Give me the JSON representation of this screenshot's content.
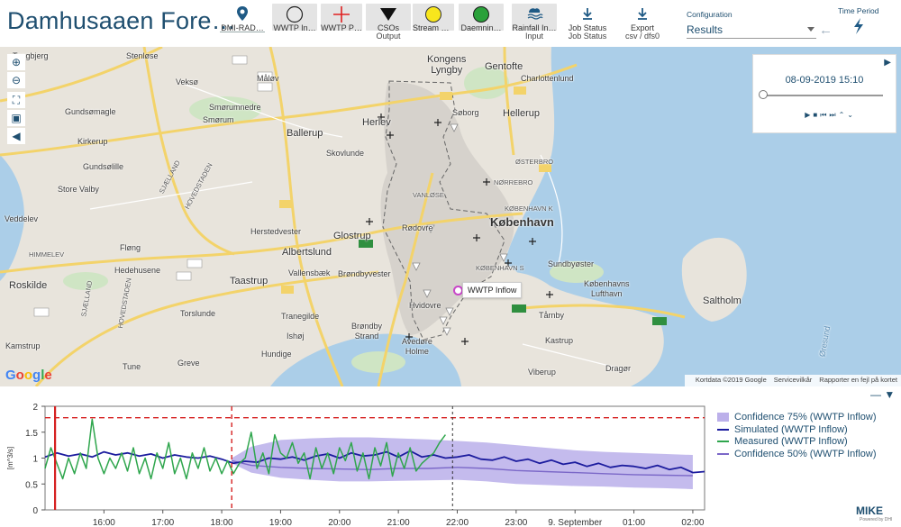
{
  "app": {
    "title": "Damhusaaen Fore…"
  },
  "toolbar": {
    "buttons": [
      {
        "label": "DMI-RAD…",
        "sub": ""
      },
      {
        "label": "WWTP In…",
        "sub": ""
      },
      {
        "label": "WWTP P…",
        "sub": ""
      },
      {
        "label": "CSOs",
        "sub": "Output"
      },
      {
        "label": "Stream O…",
        "sub": ""
      },
      {
        "label": "Daemnin…",
        "sub": ""
      },
      {
        "label": "Rainfall In…",
        "sub": "Input"
      },
      {
        "label": "Job Status",
        "sub": "Job Status"
      },
      {
        "label": "Export",
        "sub": "csv / dfs0"
      }
    ],
    "configuration_label": "Configuration",
    "configuration_value": "Results",
    "time_period_label": "Time Period"
  },
  "colors": {
    "title": "#1f4f70",
    "water": "#abcee8",
    "land": "#e8e4dc",
    "road": "#f3d36a",
    "confidence75": "#a596e3",
    "simulated": "#1c1c9e",
    "measured": "#2fa64d",
    "confidence50": "#7b68c8",
    "reference_line": "#d62020",
    "wwtp_marker": "#c846c8"
  },
  "map": {
    "places": {
      "tangbjerg": "Tangbjerg",
      "stenlose": "Stenløse",
      "veksoe": "Veksø",
      "malov": "Måløv",
      "smorumnedre": "Smørumnedre",
      "smorum": "Smørum",
      "gundsomagle": "Gundsømagle",
      "kirkerup": "Kirkerup",
      "gundsolille": "Gundsølille",
      "store_valby": "Store Valby",
      "sjaelland": "SJÆLLAND",
      "hovedstaden": "HOVEDSTADEN",
      "veddelev": "Veddelev",
      "himmelev": "HIMMELEV",
      "floeng": "Fløng",
      "hedehusene": "Hedehusene",
      "roskilde": "Roskilde",
      "sjaelland2": "SJÆLLAND",
      "hovedstaden2": "HOVEDSTADEN",
      "torslunde": "Torslunde",
      "kamstrup": "Kamstrup",
      "tune": "Tune",
      "greve": "Greve",
      "hundige": "Hundige",
      "ishoj": "Ishøj",
      "tranegilde": "Tranegilde",
      "taastrup": "Taastrup",
      "vallensbaek": "Vallensbæk",
      "brondbyvester": "Brøndbyvester",
      "albertslund": "Albertslund",
      "glostrup": "Glostrup",
      "herstedvester": "Herstedvester",
      "ballerup": "Ballerup",
      "skovlunde": "Skovlunde",
      "herlev": "Herlev",
      "kongens_lyngby": "Kongens\nLyngby",
      "gentofte": "Gentofte",
      "charlottenlund": "Charlottenlund",
      "soborg": "Søborg",
      "hellerup": "Hellerup",
      "osterbro": "ØSTERBRO",
      "norrebro": "NØRREBRO",
      "kobenhavn_k": "KØBENHAVN K",
      "kobenhavn": "København",
      "sundbyoster": "Sundbyøster",
      "kobenhavns_lufthavn": "Københavns\nLufthavn",
      "saltholm": "Saltholm",
      "tarnby": "Tårnby",
      "kastrup": "Kastrup",
      "brondby_strand": "Brøndby\nStrand",
      "avedore_holme": "Avedøre\nHolme",
      "hvidovre": "Hvidovre",
      "viberup": "Viberup",
      "dragor": "Dragør",
      "oresund": "Øresund",
      "rodovre": "Rødovre",
      "vanlose": "VANLØSE",
      "kobenhavn_s": "KØBENHAVN S"
    },
    "road_numbers": [
      "233",
      "211",
      "6",
      "53",
      "207",
      "16",
      "19",
      "O3",
      "19",
      "O2",
      "19",
      "O2",
      "6",
      "O4",
      "O4",
      "21",
      "21",
      "156",
      "531",
      "O3",
      "21",
      "6",
      "21",
      "E47",
      "E20",
      "E20",
      "O2",
      "217",
      "151",
      "6",
      "16"
    ],
    "timestamp": "08-09-2019 15:10",
    "tooltip": "WWTP Inflow",
    "google": "Google",
    "attribution": [
      "Kortdata ©2019 Google",
      "Servicevilkår",
      "Rapporter en fejl på kortet"
    ]
  },
  "chart_data": {
    "type": "line",
    "ylabel": "[m^3/s]",
    "ylim": [
      0,
      2
    ],
    "yticks": [
      "0",
      "0.5",
      "1",
      "1.5",
      "2"
    ],
    "xlim": [
      15.0,
      26.2
    ],
    "xtick_positions": [
      16,
      17,
      18,
      19,
      20,
      21,
      22,
      23,
      24,
      25,
      26
    ],
    "xtick_labels": [
      "16:00",
      "17:00",
      "18:00",
      "19:00",
      "20:00",
      "21:00",
      "22:00",
      "23:00",
      "9. September",
      "01:00",
      "02:00"
    ],
    "threshold_y": 1.78,
    "forecast_start_x": 18.17,
    "start_marker_x": 15.17,
    "current_time_x": 21.92,
    "series": [
      {
        "name": "Confidence 75% (WWTP Inflow)",
        "x": [
          18.17,
          18.5,
          19.0,
          19.5,
          20.0,
          20.5,
          21.0,
          21.5,
          22.0,
          22.5,
          23.0,
          23.5,
          24.0,
          24.5,
          25.0,
          25.5,
          26.0
        ],
        "upper": [
          1.0,
          1.22,
          1.35,
          1.38,
          1.4,
          1.4,
          1.38,
          1.36,
          1.33,
          1.3,
          1.25,
          1.2,
          1.15,
          1.12,
          1.1,
          1.08,
          1.06
        ],
        "lower": [
          0.9,
          0.72,
          0.62,
          0.58,
          0.55,
          0.55,
          0.56,
          0.57,
          0.58,
          0.55,
          0.5,
          0.48,
          0.46,
          0.45,
          0.43,
          0.42,
          0.4
        ]
      },
      {
        "name": "Simulated (WWTP Inflow)",
        "x": [
          15.0,
          15.2,
          15.4,
          15.6,
          15.8,
          16.0,
          16.2,
          16.4,
          16.6,
          16.8,
          17.0,
          17.2,
          17.4,
          17.6,
          17.8,
          18.0,
          18.2,
          18.4,
          18.6,
          18.8,
          19.0,
          19.2,
          19.4,
          19.6,
          19.8,
          20.0,
          20.2,
          20.4,
          20.6,
          20.8,
          21.0,
          21.2,
          21.4,
          21.6,
          21.8,
          22.0,
          22.2,
          22.4,
          22.6,
          22.8,
          23.0,
          23.2,
          23.4,
          23.6,
          23.8,
          24.0,
          24.2,
          24.4,
          24.6,
          24.8,
          25.0,
          25.2,
          25.4,
          25.6,
          25.8,
          26.0,
          26.2
        ],
        "values": [
          1.02,
          1.1,
          1.04,
          1.08,
          1.02,
          1.12,
          1.06,
          1.1,
          1.04,
          1.08,
          1.0,
          1.06,
          1.02,
          1.0,
          1.04,
          0.98,
          0.9,
          0.94,
          0.92,
          1.0,
          0.98,
          1.02,
          0.96,
          1.04,
          1.08,
          1.0,
          1.1,
          1.04,
          1.06,
          1.12,
          1.02,
          1.14,
          1.02,
          1.06,
          1.0,
          1.02,
          1.06,
          0.98,
          0.96,
          1.02,
          0.94,
          0.98,
          0.9,
          0.96,
          0.88,
          0.92,
          0.84,
          0.9,
          0.82,
          0.86,
          0.84,
          0.8,
          0.86,
          0.78,
          0.82,
          0.72,
          0.74
        ]
      },
      {
        "name": "Measured (WWTP Inflow)",
        "x": [
          15.0,
          15.1,
          15.2,
          15.3,
          15.4,
          15.5,
          15.6,
          15.7,
          15.8,
          15.9,
          16.0,
          16.1,
          16.2,
          16.3,
          16.4,
          16.5,
          16.6,
          16.7,
          16.8,
          16.9,
          17.0,
          17.1,
          17.2,
          17.3,
          17.4,
          17.5,
          17.6,
          17.7,
          17.8,
          17.9,
          18.0,
          18.1,
          18.2,
          18.3,
          18.4,
          18.5,
          18.6,
          18.7,
          18.8,
          18.9,
          19.0,
          19.1,
          19.2,
          19.3,
          19.4,
          19.5,
          19.6,
          19.7,
          19.8,
          19.9,
          20.0,
          20.1,
          20.2,
          20.3,
          20.4,
          20.5,
          20.6,
          20.7,
          20.8,
          20.9,
          21.0,
          21.1,
          21.2,
          21.3,
          21.4,
          21.5,
          21.6,
          21.7,
          21.8
        ],
        "values": [
          0.8,
          1.2,
          0.9,
          0.6,
          1.0,
          0.7,
          1.1,
          0.8,
          1.75,
          1.0,
          0.7,
          1.0,
          0.8,
          1.1,
          0.75,
          1.2,
          0.7,
          1.0,
          0.6,
          1.1,
          0.8,
          1.3,
          0.7,
          1.0,
          0.6,
          1.1,
          0.8,
          1.2,
          0.75,
          1.0,
          0.7,
          0.95,
          0.7,
          0.9,
          1.0,
          1.5,
          0.8,
          1.1,
          0.7,
          1.45,
          1.1,
          1.0,
          1.3,
          0.9,
          1.1,
          0.6,
          1.2,
          0.8,
          1.1,
          0.7,
          1.2,
          0.95,
          1.3,
          0.75,
          1.1,
          0.6,
          1.2,
          0.85,
          1.3,
          0.65,
          1.1,
          0.8,
          1.2,
          0.75,
          0.9,
          1.0,
          1.1,
          1.3,
          1.45
        ]
      },
      {
        "name": "Confidence 50% (WWTP Inflow)",
        "x": [
          18.17,
          18.5,
          19.0,
          19.5,
          20.0,
          20.5,
          21.0,
          21.5,
          22.0,
          22.5,
          23.0,
          23.5,
          24.0,
          24.5,
          25.0,
          25.5,
          26.0
        ],
        "values": [
          0.95,
          0.86,
          0.82,
          0.8,
          0.79,
          0.78,
          0.8,
          0.8,
          0.82,
          0.8,
          0.76,
          0.74,
          0.72,
          0.7,
          0.68,
          0.67,
          0.66
        ]
      }
    ]
  },
  "footer": {
    "logo": "MIKE",
    "logo_sub": "Powered by DHI"
  }
}
